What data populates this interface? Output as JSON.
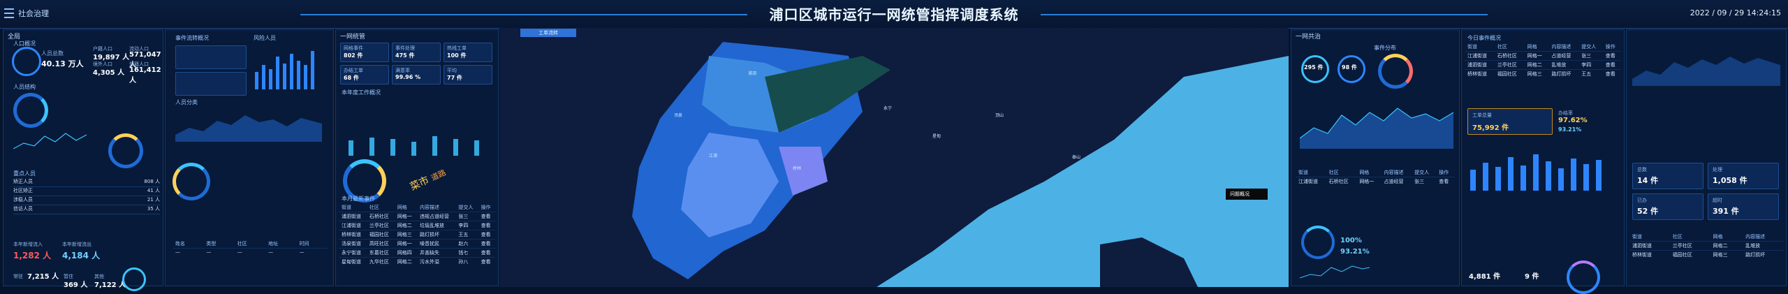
{
  "app": {
    "title": "浦口区城市运行一网统管指挥调度系统",
    "datetime": "2022 / 09 / 29 14:24:15",
    "left_nav_label": "社会治理"
  },
  "left": {
    "section_1": "全局",
    "population_title": "人口概况",
    "population_total_label": "人员总数",
    "population_total_value": "40.13 万人",
    "reg_pop_label": "户籍人口",
    "reg_pop_value": "19,897 人",
    "float_pop_label": "流动人口",
    "float_pop_value": "571,047 人",
    "abroad_label": "境外人口",
    "abroad_value": "4,305 人",
    "other_label": "外籍人口",
    "other_value": "161,412 人",
    "structure_title": "人员结构",
    "key_people_title": "重点人员",
    "event_title": "事件流转概况",
    "risk_title": "风险人员",
    "people_type_title": "人员分类",
    "counts": [
      {
        "label": "矫正人员",
        "value": "808 人"
      },
      {
        "label": "社区矫正",
        "value": "41 人"
      },
      {
        "label": "涉稳人员",
        "value": "21 人"
      },
      {
        "label": "信访人员",
        "value": "35 人"
      }
    ],
    "bottom_stats": [
      {
        "label": "本年新增流入",
        "value": "1,282 人"
      },
      {
        "label": "本年新增流出",
        "value": "4,184 人"
      },
      {
        "label": "常驻",
        "value": "7,215 人"
      },
      {
        "label": "暂住",
        "value": "369 人"
      },
      {
        "label": "其他",
        "value": "7,122 人"
      }
    ]
  },
  "mid_left": {
    "section_1": "一网统管",
    "kpis": [
      {
        "label": "网格事件",
        "value": "802 件"
      },
      {
        "label": "事件处理",
        "value": "475 件"
      },
      {
        "label": "热线工单",
        "value": "100 件"
      },
      {
        "label": "办结工单",
        "value": "68 件"
      },
      {
        "label": "满意率",
        "value": "99.96 %"
      },
      {
        "label": "平均",
        "value": "77 件"
      }
    ],
    "chart_title": "本年度工作概况",
    "word_cloud_1": "菜市",
    "word_cloud_2": "道路",
    "table_title": "本月最新事件",
    "table_headers": [
      "街道",
      "社区",
      "网格",
      "内容描述",
      "提交人",
      "操作"
    ],
    "table_rows": [
      [
        "浦泗街道",
        "石桥社区",
        "网格一",
        "违规占道经营",
        "张三",
        "查看"
      ],
      [
        "江浦街道",
        "兰亭社区",
        "网格二",
        "垃圾乱堆放",
        "李四",
        "查看"
      ],
      [
        "桥林街道",
        "福园社区",
        "网格三",
        "路灯损坏",
        "王五",
        "查看"
      ],
      [
        "汤泉街道",
        "高旺社区",
        "网格一",
        "噪音扰民",
        "赵六",
        "查看"
      ],
      [
        "永宁街道",
        "东葛社区",
        "网格四",
        "井盖缺失",
        "钱七",
        "查看"
      ],
      [
        "星甸街道",
        "九华社区",
        "网格二",
        "污水外溢",
        "孙八",
        "查看"
      ]
    ]
  },
  "map": {
    "tab_label": "工单流转",
    "event_button": "问题概况",
    "labels": [
      "浦泗",
      "江浦",
      "汤泉",
      "桥林",
      "永宁",
      "星甸",
      "顶山",
      "泰山"
    ]
  },
  "right": {
    "section_1": "一网共治",
    "gauge_1": "295 件",
    "gauge_2": "98 件",
    "event_distribution_title": "事件分布",
    "summary_title": "今日事件概况",
    "table_headers": [
      "街道",
      "社区",
      "网格",
      "内容描述",
      "提交人",
      "操作"
    ],
    "table_rows": [
      [
        "江浦街道",
        "石桥社区",
        "网格一",
        "占道经营",
        "张三",
        "查看"
      ],
      [
        "浦泗街道",
        "兰亭社区",
        "网格二",
        "乱堆放",
        "李四",
        "查看"
      ],
      [
        "桥林街道",
        "福园社区",
        "网格三",
        "路灯损坏",
        "王五",
        "查看"
      ]
    ],
    "work_orders_label": "工单总量",
    "work_orders_value": "75,992 件",
    "completion_label": "办结率",
    "completion_value": "97.62%",
    "satisfaction_value": "93.21%",
    "progress_1": "100%",
    "progress_2": "93.21%",
    "big_numbers": [
      {
        "label": "总数",
        "value": "14 件"
      },
      {
        "label": "处理",
        "value": "1,058 件"
      },
      {
        "label": "已办",
        "value": "52 件"
      },
      {
        "label": "超时",
        "value": "391 件"
      }
    ],
    "bottom_val": "4,881 件",
    "bottom_val2": "9 件"
  }
}
